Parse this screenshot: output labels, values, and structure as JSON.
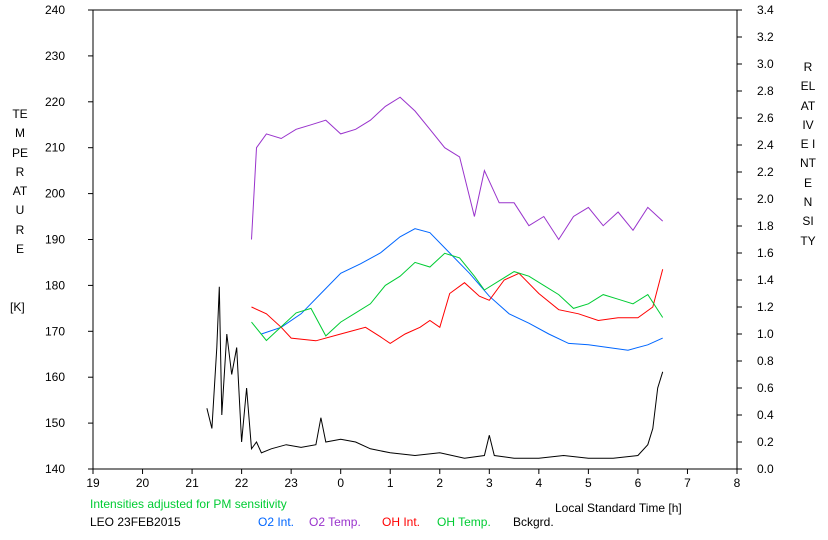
{
  "chart_data": {
    "type": "line",
    "xlabel": "Local Standard Time [h]",
    "ylabel_left": "TEMPERATURE",
    "ylabel_left_unit": "[K]",
    "ylabel_right": "RELATIVE INTENSITY",
    "x_ticks": [
      "19",
      "20",
      "21",
      "22",
      "23",
      "0",
      "1",
      "2",
      "3",
      "4",
      "5",
      "6",
      "7",
      "8"
    ],
    "xlim": [
      19,
      32
    ],
    "ylim_left": [
      140,
      240
    ],
    "left_ticks": [
      140,
      150,
      160,
      170,
      180,
      190,
      200,
      210,
      220,
      230,
      240
    ],
    "ylim_right": [
      0.0,
      3.4
    ],
    "right_ticks": [
      "0.0",
      "0.2",
      "0.4",
      "0.6",
      "0.8",
      "1.0",
      "1.2",
      "1.4",
      "1.6",
      "1.8",
      "2.0",
      "2.2",
      "2.4",
      "2.6",
      "2.8",
      "3.0",
      "3.2",
      "3.4"
    ],
    "grid": false,
    "annotation": "Intensities adjusted for PM sensitivity",
    "station": "LEO 23FEB2015",
    "series": [
      {
        "name": "O2 Int.",
        "axis": "right",
        "color": "#0066ff",
        "x": [
          22.4,
          22.8,
          23.2,
          23.6,
          24.0,
          24.4,
          24.8,
          25.2,
          25.5,
          25.8,
          26.2,
          26.6,
          27.0,
          27.4,
          27.8,
          28.2,
          28.6,
          29.0,
          29.4,
          29.8,
          30.2,
          30.5
        ],
        "y": [
          1.0,
          1.05,
          1.15,
          1.3,
          1.45,
          1.52,
          1.6,
          1.72,
          1.78,
          1.75,
          1.6,
          1.45,
          1.28,
          1.15,
          1.08,
          1.0,
          0.93,
          0.92,
          0.9,
          0.88,
          0.92,
          0.97
        ]
      },
      {
        "name": "O2 Temp.",
        "axis": "left",
        "color": "#9933cc",
        "x": [
          22.2,
          22.3,
          22.5,
          22.8,
          23.1,
          23.4,
          23.7,
          24.0,
          24.3,
          24.6,
          24.9,
          25.2,
          25.5,
          25.8,
          26.1,
          26.4,
          26.7,
          26.9,
          27.2,
          27.5,
          27.8,
          28.1,
          28.4,
          28.7,
          29.0,
          29.3,
          29.6,
          29.9,
          30.2,
          30.5
        ],
        "y": [
          190,
          210,
          213,
          212,
          214,
          215,
          216,
          213,
          214,
          216,
          219,
          221,
          218,
          214,
          210,
          208,
          195,
          205,
          198,
          198,
          193,
          195,
          190,
          195,
          197,
          193,
          196,
          192,
          197,
          194
        ]
      },
      {
        "name": "OH Int.",
        "axis": "right",
        "color": "#ff0000",
        "x": [
          22.2,
          22.5,
          22.8,
          23.0,
          23.5,
          24.0,
          24.5,
          24.8,
          25.0,
          25.3,
          25.6,
          25.8,
          26.0,
          26.2,
          26.5,
          26.8,
          27.0,
          27.3,
          27.6,
          28.0,
          28.4,
          28.8,
          29.2,
          29.6,
          30.0,
          30.3,
          30.5
        ],
        "y": [
          1.2,
          1.15,
          1.05,
          0.97,
          0.95,
          1.0,
          1.05,
          0.98,
          0.93,
          1.0,
          1.05,
          1.1,
          1.05,
          1.3,
          1.38,
          1.28,
          1.25,
          1.4,
          1.45,
          1.3,
          1.18,
          1.15,
          1.1,
          1.12,
          1.12,
          1.2,
          1.48
        ]
      },
      {
        "name": "OH Temp.",
        "axis": "left",
        "color": "#00cc33",
        "x": [
          22.2,
          22.5,
          22.8,
          23.1,
          23.4,
          23.7,
          24.0,
          24.3,
          24.6,
          24.9,
          25.2,
          25.5,
          25.8,
          26.1,
          26.4,
          26.7,
          26.9,
          27.2,
          27.5,
          27.8,
          28.1,
          28.4,
          28.7,
          29.0,
          29.3,
          29.6,
          29.9,
          30.2,
          30.5
        ],
        "y": [
          172,
          168,
          171,
          174,
          175,
          169,
          172,
          174,
          176,
          180,
          182,
          185,
          184,
          187,
          186,
          182,
          179,
          181,
          183,
          182,
          180,
          178,
          175,
          176,
          178,
          177,
          176,
          178,
          173
        ]
      },
      {
        "name": "Bckgrd.",
        "axis": "right",
        "color": "#000000",
        "x": [
          21.3,
          21.4,
          21.5,
          21.55,
          21.6,
          21.7,
          21.8,
          21.9,
          22.0,
          22.1,
          22.2,
          22.3,
          22.4,
          22.6,
          22.9,
          23.2,
          23.5,
          23.6,
          23.7,
          24.0,
          24.3,
          24.6,
          25.0,
          25.5,
          26.0,
          26.5,
          26.9,
          27.0,
          27.1,
          27.5,
          28.0,
          28.5,
          29.0,
          29.5,
          30.0,
          30.2,
          30.3,
          30.4,
          30.5
        ],
        "y": [
          0.45,
          0.3,
          0.9,
          1.35,
          0.4,
          1.0,
          0.7,
          0.9,
          0.2,
          0.6,
          0.15,
          0.2,
          0.12,
          0.15,
          0.18,
          0.16,
          0.18,
          0.38,
          0.2,
          0.22,
          0.2,
          0.15,
          0.12,
          0.1,
          0.12,
          0.08,
          0.1,
          0.25,
          0.1,
          0.08,
          0.08,
          0.1,
          0.08,
          0.08,
          0.1,
          0.18,
          0.3,
          0.6,
          0.72
        ]
      }
    ]
  }
}
